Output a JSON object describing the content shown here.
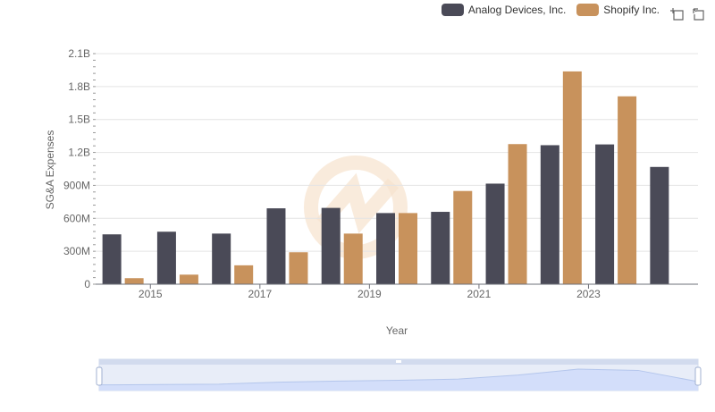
{
  "legend": {
    "items": [
      {
        "label": "Analog Devices, Inc.",
        "color": "#4a4a57"
      },
      {
        "label": "Shopify Inc.",
        "color": "#c8925c"
      }
    ]
  },
  "toolbox": {
    "icons": [
      "zoom-icon",
      "restore-icon"
    ]
  },
  "chart_data": {
    "type": "bar",
    "xlabel": "Year",
    "ylabel": "SG&A Expenses",
    "categories": [
      "2014",
      "2015",
      "2016",
      "2017",
      "2018",
      "2019",
      "2020",
      "2021",
      "2022",
      "2023",
      "2024"
    ],
    "x_tick_labels": [
      "2015",
      "2017",
      "2019",
      "2021",
      "2023"
    ],
    "y_ticks": [
      {
        "value": 0,
        "label": "0"
      },
      {
        "value": 300000000,
        "label": "300M"
      },
      {
        "value": 600000000,
        "label": "600M"
      },
      {
        "value": 900000000,
        "label": "900M"
      },
      {
        "value": 1200000000,
        "label": "1.2B"
      },
      {
        "value": 1500000000,
        "label": "1.5B"
      },
      {
        "value": 1800000000,
        "label": "1.8B"
      },
      {
        "value": 2100000000,
        "label": "2.1B"
      }
    ],
    "ylim": [
      0,
      2100000000
    ],
    "grid": true,
    "legend_position": "top-right",
    "series": [
      {
        "name": "Analog Devices, Inc.",
        "color": "#4a4a57",
        "values": [
          454000000,
          478000000,
          461000000,
          691000000,
          695000000,
          648000000,
          659000000,
          916000000,
          1266000000,
          1273000000,
          1068000000
        ]
      },
      {
        "name": "Shopify Inc.",
        "color": "#c8925c",
        "values": [
          55000000,
          87000000,
          172000000,
          291000000,
          461000000,
          648000000,
          849000000,
          1276000000,
          1938000000,
          1711000000,
          null
        ]
      }
    ]
  },
  "data_zoom": {
    "start_percent": 0,
    "end_percent": 100
  }
}
